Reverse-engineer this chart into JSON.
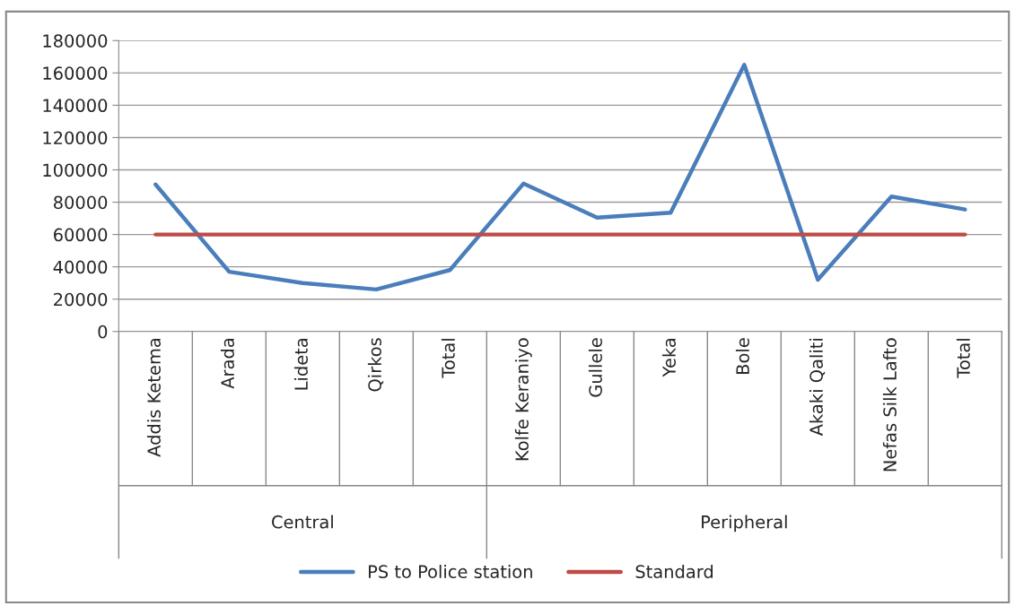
{
  "chart_data": {
    "type": "line",
    "categories": [
      "Addis Ketema",
      "Arada",
      "Lideta",
      "Qirkos",
      "Total",
      "Kolfe Keraniyo",
      "Gullele",
      "Yeka",
      "Bole",
      "Akaki Qaliti",
      "Nefas Silk Lafto",
      "Total"
    ],
    "series": [
      {
        "name": "PS to Police station",
        "color": "#4a7ebb",
        "values": [
          91000,
          37000,
          30000,
          26000,
          38000,
          91500,
          70500,
          73500,
          165000,
          32000,
          83500,
          75500
        ]
      },
      {
        "name": "Standard",
        "color": "#be4b48",
        "values": [
          60000,
          60000,
          60000,
          60000,
          60000,
          60000,
          60000,
          60000,
          60000,
          60000,
          60000,
          60000
        ]
      }
    ],
    "ylim": [
      0,
      180000
    ],
    "yticks": [
      0,
      20000,
      40000,
      60000,
      80000,
      100000,
      120000,
      140000,
      160000,
      180000
    ],
    "grid": "y",
    "legend": "bottom",
    "marker": "none",
    "line_style": "solid",
    "annotations": [
      "Central",
      "Peripheral"
    ]
  }
}
